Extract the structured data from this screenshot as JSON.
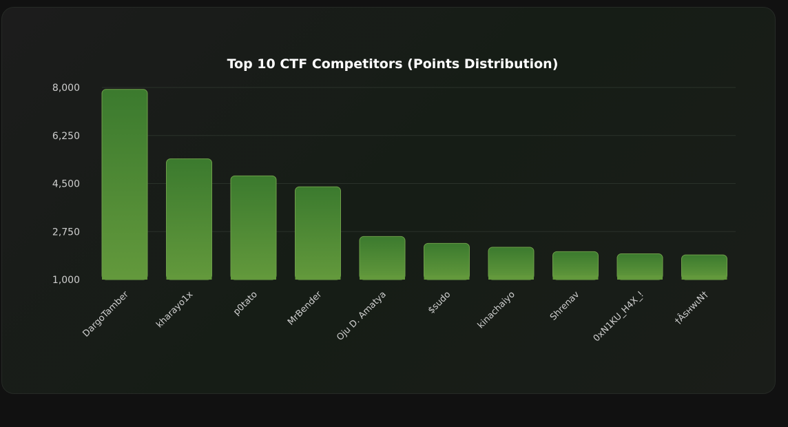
{
  "chart_data": {
    "type": "bar",
    "title": "Top 10 CTF Competitors (Points Distribution)",
    "xlabel": "",
    "ylabel": "",
    "ylim": [
      1000,
      8000
    ],
    "yticks": [
      "8,000",
      "6,250",
      "4,500",
      "2,750",
      "1,000"
    ],
    "ytick_values": [
      8000,
      6250,
      4500,
      2750,
      1000
    ],
    "grid": true,
    "categories": [
      "DargoTamber",
      "kharayo1x",
      "p0tato",
      "MrBender",
      "Oju D. Amatya",
      "$sudo",
      "kinachaiyo",
      "Shrenav",
      "0xN1KU_H4X_!",
      "†ÂsнwιN†"
    ],
    "values": [
      7930,
      5400,
      4780,
      4380,
      2570,
      2320,
      2180,
      2020,
      1940,
      1900
    ],
    "colors": {
      "bar_top": "#3b7a2e",
      "bar_bottom": "#63993c",
      "bar_border": "#6e9e4a"
    }
  }
}
